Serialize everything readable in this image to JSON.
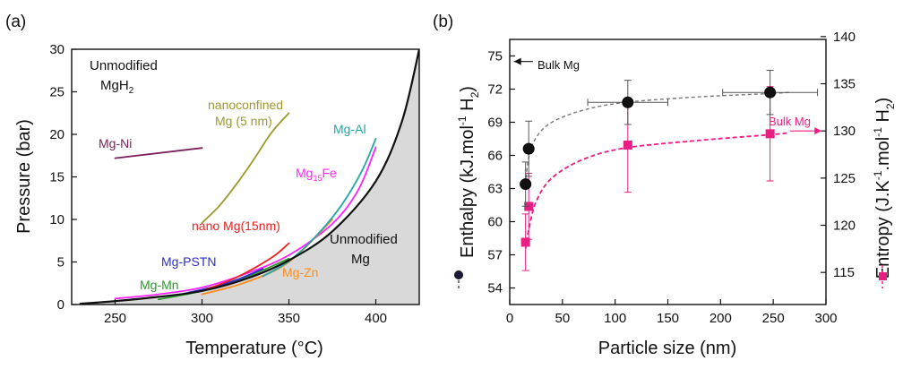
{
  "chart_data": [
    {
      "panel": "(a)",
      "type": "line",
      "xlabel": "Temperature (°C)",
      "ylabel": "Pressure (bar)",
      "xlim": [
        225,
        425
      ],
      "ylim": [
        0,
        30
      ],
      "xticks": [
        250,
        300,
        350,
        400
      ],
      "yticks": [
        0,
        5,
        10,
        15,
        20,
        25,
        30
      ],
      "region_labels": {
        "unmodified_mgh2": [
          "Unmodified",
          "MgH",
          "2"
        ],
        "unmodified_mg": [
          "Unmodified",
          "Mg"
        ]
      },
      "series": [
        {
          "name": "Unmodified",
          "color": "#111111",
          "points": [
            [
              230,
              0.1
            ],
            [
              250,
              0.4
            ],
            [
              275,
              0.9
            ],
            [
              300,
              1.6
            ],
            [
              325,
              3.0
            ],
            [
              350,
              5.2
            ],
            [
              375,
              8.6
            ],
            [
              400,
              14.5
            ],
            [
              415,
              21.5
            ],
            [
              425,
              30
            ]
          ]
        },
        {
          "name": "Mg-Ni",
          "color": "#7a1f5a",
          "points": [
            [
              250,
              17.2
            ],
            [
              300,
              18.4
            ]
          ]
        },
        {
          "name": "nanoconfined Mg (5 nm)",
          "label_lines": [
            "nanoconfined",
            "Mg (5 nm)"
          ],
          "color": "#9a9a2a",
          "points": [
            [
              300,
              9.6
            ],
            [
              310,
              11.6
            ],
            [
              320,
              14.2
            ],
            [
              330,
              17.1
            ],
            [
              340,
              20.2
            ],
            [
              350,
              22.5
            ]
          ]
        },
        {
          "name": "Mg-Al",
          "color": "#22a6a6",
          "points": [
            [
              335,
              3.3
            ],
            [
              350,
              5.1
            ],
            [
              365,
              7.9
            ],
            [
              380,
              11.6
            ],
            [
              392,
              15.7
            ],
            [
              400,
              19.5
            ]
          ]
        },
        {
          "name": "Mg15Fe",
          "label_main": "Mg",
          "label_sub": "15",
          "label_tail": "Fe",
          "color": "#ff22ff",
          "points": [
            [
              250,
              0.7
            ],
            [
              275,
              1.2
            ],
            [
              300,
              2.0
            ],
            [
              325,
              3.6
            ],
            [
              350,
              5.8
            ],
            [
              375,
              9.5
            ],
            [
              390,
              13.5
            ],
            [
              400,
              18.5
            ]
          ]
        },
        {
          "name": "nano Mg(15nm)",
          "color": "#ee2222",
          "points": [
            [
              300,
              1.6
            ],
            [
              320,
              3.2
            ],
            [
              340,
              5.5
            ],
            [
              350,
              7.2
            ]
          ]
        },
        {
          "name": "Mg-PSTN",
          "color": "#2e2ecc",
          "points": [
            [
              290,
              1.3
            ],
            [
              305,
              2.0
            ],
            [
              320,
              2.9
            ],
            [
              335,
              4.2
            ]
          ]
        },
        {
          "name": "Mg-Mn",
          "color": "#2a9a2a",
          "points": [
            [
              275,
              0.6
            ],
            [
              300,
              1.6
            ],
            [
              325,
              3.2
            ],
            [
              350,
              5.4
            ]
          ]
        },
        {
          "name": "Mg-Zn",
          "color": "#ff8c1a",
          "points": [
            [
              300,
              1.2
            ],
            [
              325,
              2.6
            ],
            [
              350,
              5.0
            ],
            [
              375,
              10.0
            ]
          ]
        }
      ]
    },
    {
      "panel": "(b)",
      "type": "scatter",
      "xlabel": "Particle size (nm)",
      "ylabel_left": [
        "Enthalpy (kJ.mol",
        "-1",
        " H",
        "2",
        ")"
      ],
      "ylabel_right": [
        "Entropy (J.K",
        "-1",
        ".mol",
        "-1",
        " H",
        "2",
        ")"
      ],
      "xlim": [
        0,
        300
      ],
      "ylim_left": [
        52.5,
        76.5
      ],
      "ylim_right": [
        111.6,
        139.7
      ],
      "xticks": [
        0,
        50,
        100,
        150,
        200,
        250,
        300
      ],
      "yticks_left": [
        54,
        57,
        60,
        63,
        66,
        69,
        72,
        75
      ],
      "yticks_right": [
        115,
        120,
        125,
        130,
        135,
        140
      ],
      "annotations": {
        "bulk_mg_enthalpy": "Bulk Mg",
        "bulk_mg_entropy": "Bulk Mg"
      },
      "bulk_lines": {
        "enthalpy": 74.5,
        "entropy": 130
      },
      "enthalpy": {
        "name": "Enthalpy",
        "color": "#111111",
        "points": [
          {
            "x": 15,
            "y": 63.4,
            "yerr": 2.0,
            "xerr": 2
          },
          {
            "x": 18,
            "y": 66.6,
            "yerr": 2.5,
            "xerr": 2
          },
          {
            "x": 112,
            "y": 70.8,
            "yerr": 2.0,
            "xerr": 38
          },
          {
            "x": 247,
            "y": 71.7,
            "yerr": 2.0,
            "xerr": 45
          }
        ],
        "fit": [
          [
            15,
            63.4
          ],
          [
            18,
            65.8
          ],
          [
            25,
            67.6
          ],
          [
            40,
            69.0
          ],
          [
            70,
            70.1
          ],
          [
            110,
            70.8
          ],
          [
            180,
            71.3
          ],
          [
            247,
            71.6
          ],
          [
            265,
            71.7
          ]
        ]
      },
      "entropy": {
        "name": "Entropy",
        "color": "#e81e82",
        "points": [
          {
            "x": 15,
            "y": 118.2,
            "yerr": 3.0
          },
          {
            "x": 18,
            "y": 122.0,
            "yerr": 3.5
          },
          {
            "x": 112,
            "y": 128.5,
            "yerr": 5.0
          },
          {
            "x": 247,
            "y": 129.7,
            "yerr": 5.0
          }
        ],
        "fit": [
          [
            15,
            117.5
          ],
          [
            18,
            119.5
          ],
          [
            25,
            122.5
          ],
          [
            40,
            125.0
          ],
          [
            70,
            127.0
          ],
          [
            110,
            128.2
          ],
          [
            180,
            129.0
          ],
          [
            247,
            129.6
          ],
          [
            265,
            129.8
          ]
        ]
      }
    }
  ]
}
